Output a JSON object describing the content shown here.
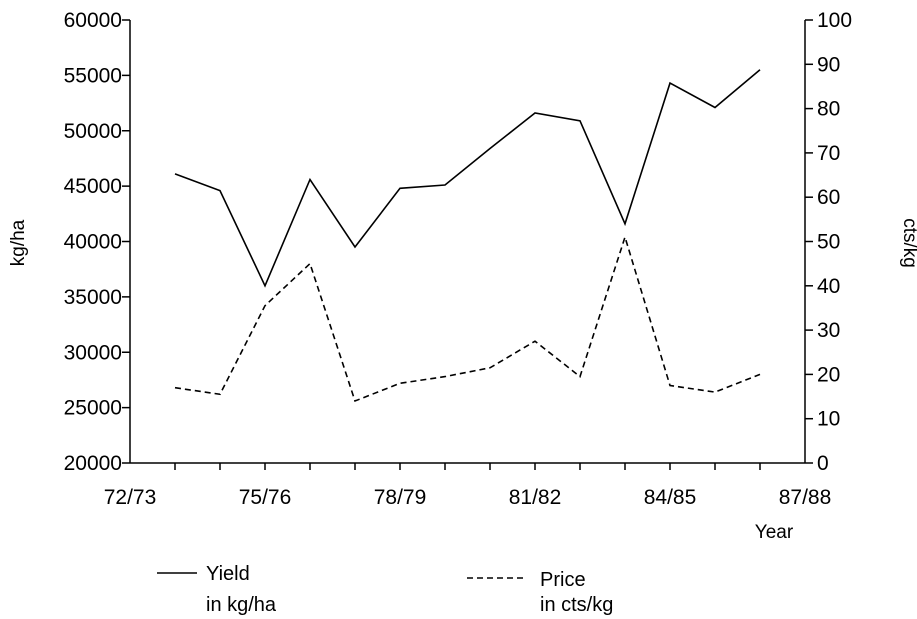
{
  "chart_data": {
    "type": "line",
    "x_tick_labels": [
      "72/73",
      "75/76",
      "78/79",
      "81/82",
      "84/85",
      "87/88"
    ],
    "x_range": [
      0,
      15
    ],
    "x": [
      1,
      2,
      3,
      4,
      5,
      6,
      7,
      8,
      9,
      10,
      11,
      12,
      13,
      14
    ],
    "xlabel": "Year",
    "ylabel_left": "kg/ha",
    "ylabel_right": "cts/kg",
    "ylim_left": [
      20000,
      60000
    ],
    "ylim_right": [
      0,
      100
    ],
    "y_ticks_left": [
      20000,
      25000,
      30000,
      35000,
      40000,
      45000,
      50000,
      55000,
      60000
    ],
    "y_ticks_right": [
      0,
      10,
      20,
      30,
      40,
      50,
      60,
      70,
      80,
      90,
      100
    ],
    "grid": false,
    "legend_position": "bottom",
    "series": [
      {
        "legend_line1": "Yield",
        "legend_line2": "in kg/ha",
        "axis": "left",
        "style": "solid",
        "values": [
          46100,
          44600,
          36000,
          45600,
          39500,
          44800,
          45100,
          48400,
          51600,
          50900,
          41600,
          54300,
          52100,
          55500
        ]
      },
      {
        "legend_line1": "Price",
        "legend_line2": "in cts/kg",
        "axis": "right",
        "style": "dashed",
        "values": [
          17,
          15.5,
          35.5,
          45,
          14,
          18,
          19.5,
          21.5,
          27.5,
          19.5,
          51,
          17.5,
          16,
          20
        ]
      }
    ]
  }
}
